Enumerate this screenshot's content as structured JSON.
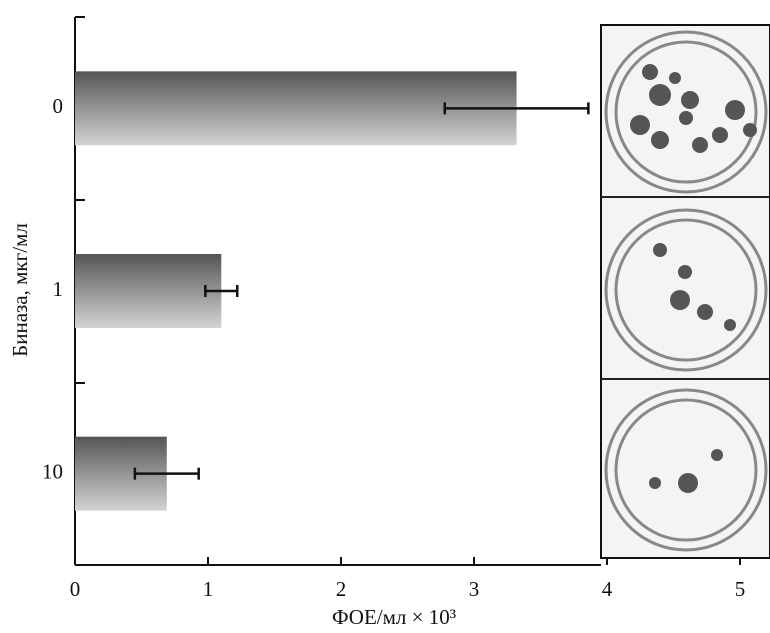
{
  "chart_data": {
    "type": "bar",
    "orientation": "horizontal",
    "x_label": "ФОЕ/мл × 10³",
    "y_label": "Биназа, мкг/мл",
    "categories": [
      "0",
      "1",
      "10"
    ],
    "values": [
      3.32,
      1.1,
      0.69
    ],
    "errors": [
      0.54,
      0.12,
      0.24
    ],
    "xlim": [
      0,
      5
    ],
    "xticks": [
      0,
      1,
      2,
      3,
      4,
      5
    ]
  }
}
